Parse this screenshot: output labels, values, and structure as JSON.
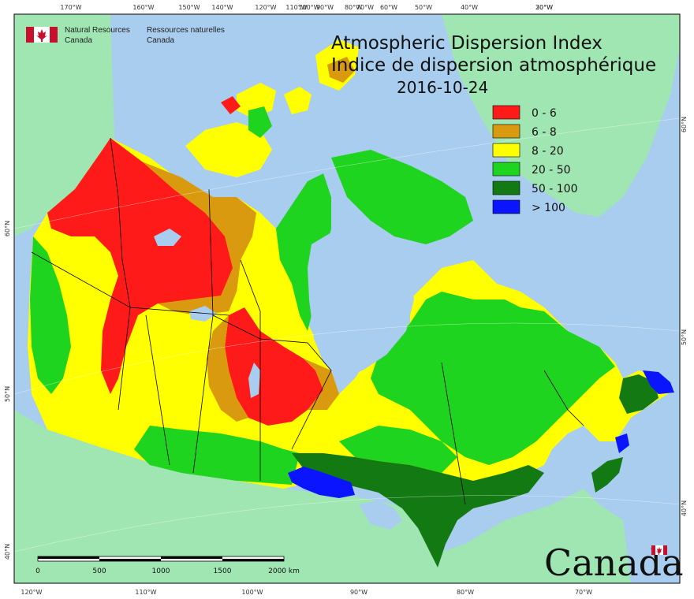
{
  "title": {
    "english": "Atmospheric Dispersion Index",
    "french": "Indice de dispersion atmosphérique",
    "date": "2016-10-24"
  },
  "agency": {
    "english_line1": "Natural Resources",
    "english_line2": "Canada",
    "french_line1": "Ressources naturelles",
    "french_line2": "Canada",
    "flag_icon": "canada-flag-icon"
  },
  "wordmark": {
    "text": "Canada",
    "flag_icon": "canada-flag-icon"
  },
  "legend": [
    {
      "label": "0 - 6",
      "color": "#ff1a1a"
    },
    {
      "label": "6 - 8",
      "color": "#d99a0f"
    },
    {
      "label": "8 - 20",
      "color": "#ffff00"
    },
    {
      "label": "20 - 50",
      "color": "#1fd41f"
    },
    {
      "label": "50 - 100",
      "color": "#137a13"
    },
    {
      "label": "> 100",
      "color": "#0a14ff"
    }
  ],
  "top_ticks": [
    "170°W",
    "160°W",
    "150°W",
    "140°W",
    "120°W",
    "110°W",
    "100°W",
    "90°W",
    "80°W",
    "70°W",
    "60°W",
    "50°W",
    "40°W",
    "30°W",
    "20°W"
  ],
  "bottom_ticks": [
    "120°W",
    "110°W",
    "100°W",
    "90°W",
    "80°W",
    "70°W"
  ],
  "left_ticks": [
    "60°N",
    "50°N",
    "40°N"
  ],
  "right_ticks": [
    "60°N",
    "50°N",
    "40°N"
  ],
  "scale_bar": {
    "labels": [
      "0",
      "500",
      "1000",
      "1500",
      "2000 km"
    ]
  },
  "colors": {
    "ocean": "#a9cdef",
    "land_other": "#9fe6b2",
    "border": "#000000"
  }
}
